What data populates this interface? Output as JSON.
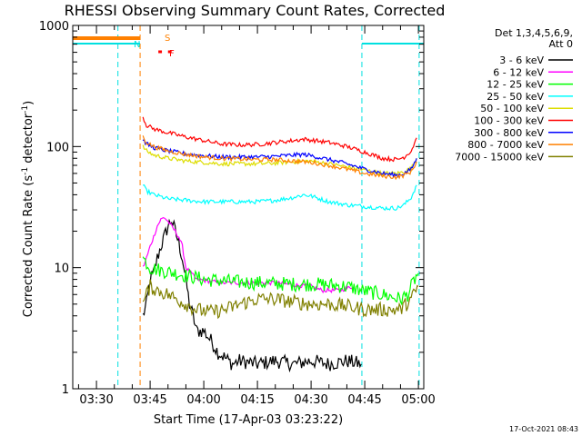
{
  "chart_data": {
    "type": "line",
    "title": "RHESSI Observing Summary Count Rates, Corrected",
    "xlabel": "Start Time (17-Apr-03 03:23:22)",
    "ylabel_main": "Corrected Count Rate (s",
    "ylabel_sup1": "-1",
    "ylabel_mid": " detector",
    "ylabel_sup2": "-1",
    "ylabel_end": ")",
    "yscale": "log",
    "ylim": [
      1,
      1000
    ],
    "xlim_minutes": [
      23.37,
      121.5
    ],
    "x_tick_labels": [
      "03:30",
      "03:45",
      "04:00",
      "04:15",
      "04:30",
      "04:45",
      "05:00"
    ],
    "x_tick_minutes": [
      30,
      45,
      60,
      75,
      90,
      105,
      120
    ],
    "y_tick_labels": [
      "1",
      "10",
      "100",
      "1000"
    ],
    "y_tick_values": [
      1,
      10,
      100,
      1000
    ],
    "timestamp": "17-Oct-2021 08:43",
    "legend_header": [
      "Det 1,3,4,5,6,9,",
      "Att 0"
    ],
    "legend_position": "right",
    "annotations": [
      {
        "label": "S",
        "color": "#ff8000"
      },
      {
        "label": "N",
        "color": "#00e0e0"
      },
      {
        "label": "F",
        "color": "#ff0000"
      }
    ],
    "series": [
      {
        "name": "3 - 6 keV",
        "color": "#000000",
        "points": [
          [
            43,
            4
          ],
          [
            44,
            5
          ],
          [
            45,
            8
          ],
          [
            46,
            9
          ],
          [
            47,
            12
          ],
          [
            48,
            15
          ],
          [
            49,
            18
          ],
          [
            50,
            22
          ],
          [
            51,
            25
          ],
          [
            52,
            20
          ],
          [
            53,
            16
          ],
          [
            54,
            12
          ],
          [
            55,
            8
          ],
          [
            56,
            5
          ],
          [
            57,
            4
          ],
          [
            58,
            3
          ],
          [
            60,
            3
          ],
          [
            62,
            2.5
          ],
          [
            64,
            2
          ],
          [
            66,
            1.8
          ],
          [
            68,
            1.6
          ],
          [
            70,
            1.7
          ],
          [
            75,
            1.6
          ],
          [
            80,
            1.7
          ],
          [
            85,
            1.6
          ],
          [
            90,
            1.7
          ],
          [
            95,
            1.6
          ],
          [
            100,
            1.7
          ],
          [
            104,
            1.6
          ]
        ]
      },
      {
        "name": "6 - 12 keV",
        "color": "#ff00ff",
        "points": [
          [
            43,
            10
          ],
          [
            44,
            12
          ],
          [
            45,
            15
          ],
          [
            46,
            18
          ],
          [
            47,
            22
          ],
          [
            48,
            25
          ],
          [
            49,
            26
          ],
          [
            50,
            24
          ],
          [
            51,
            22
          ],
          [
            52,
            20
          ],
          [
            53,
            18
          ],
          [
            54,
            15
          ],
          [
            55,
            10
          ],
          [
            58,
            8
          ],
          [
            65,
            7.5
          ],
          [
            70,
            7.5
          ],
          [
            80,
            7.5
          ],
          [
            85,
            7.2
          ],
          [
            90,
            7
          ],
          [
            93,
            6.5
          ],
          [
            98,
            6.5
          ],
          [
            102,
            7
          ]
        ]
      },
      {
        "name": "12 - 25 keV",
        "color": "#00ff00",
        "points": [
          [
            43,
            12
          ],
          [
            44,
            11
          ],
          [
            45,
            10
          ],
          [
            48,
            9.5
          ],
          [
            52,
            9
          ],
          [
            56,
            8.5
          ],
          [
            60,
            8
          ],
          [
            65,
            7.8
          ],
          [
            70,
            7.6
          ],
          [
            75,
            7.5
          ],
          [
            80,
            7.4
          ],
          [
            85,
            7.3
          ],
          [
            90,
            7.3
          ],
          [
            95,
            7.2
          ],
          [
            100,
            7
          ],
          [
            104,
            6.5
          ],
          [
            110,
            6
          ],
          [
            115,
            5.5
          ],
          [
            117,
            6
          ],
          [
            119,
            8
          ],
          [
            120,
            9
          ]
        ]
      },
      {
        "name": "25 - 50 keV",
        "color": "#00ffff",
        "points": [
          [
            43,
            48
          ],
          [
            44,
            43
          ],
          [
            46,
            40
          ],
          [
            50,
            37
          ],
          [
            55,
            36
          ],
          [
            60,
            35
          ],
          [
            65,
            35
          ],
          [
            70,
            35
          ],
          [
            75,
            35
          ],
          [
            80,
            36
          ],
          [
            85,
            38
          ],
          [
            88,
            40
          ],
          [
            90,
            39
          ],
          [
            95,
            35
          ],
          [
            100,
            33
          ],
          [
            105,
            32
          ],
          [
            110,
            31
          ],
          [
            114,
            31
          ],
          [
            116,
            33
          ],
          [
            118,
            38
          ],
          [
            119.5,
            48
          ]
        ]
      },
      {
        "name": "50 - 100 keV",
        "color": "#dddd00",
        "points": [
          [
            43,
            100
          ],
          [
            44,
            92
          ],
          [
            46,
            85
          ],
          [
            50,
            80
          ],
          [
            55,
            76
          ],
          [
            60,
            74
          ],
          [
            65,
            72
          ],
          [
            70,
            72
          ],
          [
            75,
            72
          ],
          [
            80,
            73
          ],
          [
            85,
            75
          ],
          [
            90,
            76
          ],
          [
            95,
            72
          ],
          [
            100,
            68
          ],
          [
            105,
            64
          ],
          [
            110,
            60
          ],
          [
            114,
            60
          ],
          [
            116,
            62
          ],
          [
            118,
            66
          ],
          [
            119.5,
            80
          ]
        ]
      },
      {
        "name": "100 - 300 keV",
        "color": "#ff0000",
        "points": [
          [
            43,
            175
          ],
          [
            44,
            150
          ],
          [
            46,
            140
          ],
          [
            50,
            130
          ],
          [
            55,
            120
          ],
          [
            60,
            112
          ],
          [
            65,
            105
          ],
          [
            70,
            103
          ],
          [
            75,
            104
          ],
          [
            80,
            108
          ],
          [
            85,
            112
          ],
          [
            88,
            115
          ],
          [
            90,
            113
          ],
          [
            95,
            108
          ],
          [
            100,
            100
          ],
          [
            105,
            90
          ],
          [
            110,
            80
          ],
          [
            114,
            78
          ],
          [
            116,
            82
          ],
          [
            118,
            92
          ],
          [
            119.5,
            118
          ]
        ]
      },
      {
        "name": "300 - 800 keV",
        "color": "#0000ff",
        "points": [
          [
            43,
            115
          ],
          [
            44,
            105
          ],
          [
            46,
            98
          ],
          [
            50,
            92
          ],
          [
            55,
            87
          ],
          [
            60,
            84
          ],
          [
            65,
            82
          ],
          [
            70,
            82
          ],
          [
            75,
            82
          ],
          [
            80,
            83
          ],
          [
            85,
            85
          ],
          [
            88,
            86
          ],
          [
            90,
            84
          ],
          [
            95,
            78
          ],
          [
            100,
            72
          ],
          [
            105,
            65
          ],
          [
            110,
            60
          ],
          [
            114,
            58
          ],
          [
            116,
            60
          ],
          [
            118,
            65
          ],
          [
            119.5,
            80
          ]
        ]
      },
      {
        "name": "800 - 7000 keV",
        "color": "#ff8000",
        "points": [
          [
            43,
            120
          ],
          [
            44,
            108
          ],
          [
            46,
            100
          ],
          [
            50,
            92
          ],
          [
            55,
            86
          ],
          [
            60,
            82
          ],
          [
            65,
            80
          ],
          [
            70,
            79
          ],
          [
            75,
            78
          ],
          [
            80,
            78
          ],
          [
            85,
            76
          ],
          [
            90,
            74
          ],
          [
            95,
            70
          ],
          [
            100,
            65
          ],
          [
            105,
            60
          ],
          [
            110,
            57
          ],
          [
            114,
            56
          ],
          [
            116,
            58
          ],
          [
            118,
            62
          ],
          [
            119.5,
            75
          ]
        ]
      },
      {
        "name": "7000 - 15000 keV",
        "color": "#808000",
        "points": [
          [
            43,
            5
          ],
          [
            44,
            6
          ],
          [
            45,
            7
          ],
          [
            47,
            6.5
          ],
          [
            50,
            6
          ],
          [
            55,
            5
          ],
          [
            58,
            4.5
          ],
          [
            62,
            4.3
          ],
          [
            66,
            4.5
          ],
          [
            70,
            5
          ],
          [
            75,
            5.5
          ],
          [
            80,
            5.5
          ],
          [
            85,
            5.2
          ],
          [
            90,
            5
          ],
          [
            95,
            5
          ],
          [
            100,
            4.8
          ],
          [
            105,
            4.5
          ],
          [
            110,
            4.5
          ],
          [
            115,
            4.5
          ],
          [
            118,
            5.5
          ],
          [
            120,
            7
          ]
        ]
      }
    ],
    "vlines": [
      {
        "minute": 36.0,
        "color": "#00e0e0"
      },
      {
        "minute": 42.2,
        "color": "#ff8000"
      },
      {
        "minute": 104.2,
        "color": "#00e0e0"
      },
      {
        "minute": 120.2,
        "color": "#00e0e0"
      }
    ]
  }
}
